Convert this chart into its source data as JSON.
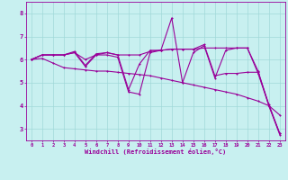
{
  "xlabel": "Windchill (Refroidissement éolien,°C)",
  "background_color": "#c8f0f0",
  "grid_color": "#a0d8d8",
  "line_color": "#990099",
  "xlim": [
    -0.5,
    23.5
  ],
  "ylim": [
    2.5,
    8.5
  ],
  "xticks": [
    0,
    1,
    2,
    3,
    4,
    5,
    6,
    7,
    8,
    9,
    10,
    11,
    12,
    13,
    14,
    15,
    16,
    17,
    18,
    19,
    20,
    21,
    22,
    23
  ],
  "yticks": [
    3,
    4,
    5,
    6,
    7,
    8
  ],
  "line1": [
    6.0,
    6.2,
    6.2,
    6.2,
    6.3,
    5.7,
    6.2,
    6.2,
    6.1,
    4.6,
    4.5,
    6.3,
    6.4,
    7.8,
    5.0,
    6.3,
    6.6,
    5.2,
    6.4,
    6.5,
    6.5,
    5.4,
    4.0,
    3.6
  ],
  "line2": [
    6.0,
    6.2,
    6.2,
    6.2,
    6.35,
    5.75,
    6.25,
    6.3,
    6.2,
    4.7,
    5.8,
    6.4,
    6.4,
    6.45,
    6.45,
    6.45,
    6.65,
    5.3,
    5.4,
    5.4,
    5.45,
    5.45,
    4.05,
    2.8
  ],
  "line3": [
    6.0,
    6.2,
    6.2,
    6.2,
    6.3,
    6.0,
    6.2,
    6.3,
    6.2,
    6.2,
    6.2,
    6.35,
    6.4,
    6.45,
    6.45,
    6.45,
    6.5,
    6.5,
    6.5,
    6.5,
    6.5,
    5.5,
    4.0,
    2.8
  ],
  "line4": [
    6.0,
    6.05,
    5.85,
    5.65,
    5.6,
    5.55,
    5.5,
    5.5,
    5.45,
    5.4,
    5.35,
    5.3,
    5.2,
    5.1,
    5.0,
    4.9,
    4.8,
    4.7,
    4.6,
    4.5,
    4.35,
    4.2,
    4.0,
    2.75
  ]
}
